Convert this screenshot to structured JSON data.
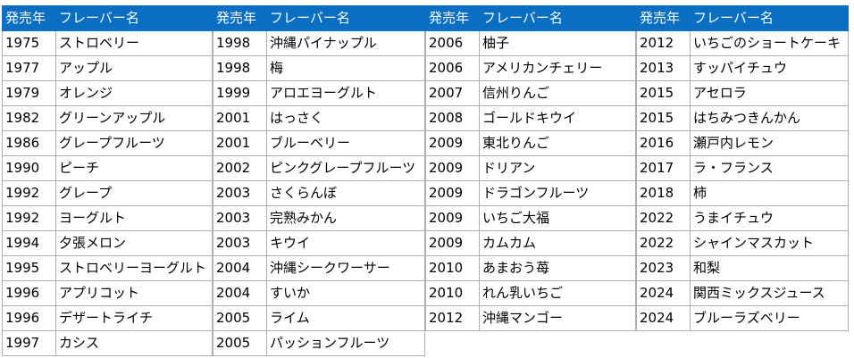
{
  "header": {
    "year": "発売年",
    "flavor": "フレーバー名"
  },
  "columns": [
    {
      "rows": [
        {
          "year": "1975",
          "flavor": "ストロベリー"
        },
        {
          "year": "1977",
          "flavor": "アップル"
        },
        {
          "year": "1979",
          "flavor": "オレンジ"
        },
        {
          "year": "1982",
          "flavor": "グリーンアップル"
        },
        {
          "year": "1986",
          "flavor": "グレープフルーツ"
        },
        {
          "year": "1990",
          "flavor": "ピーチ"
        },
        {
          "year": "1992",
          "flavor": "グレープ"
        },
        {
          "year": "1992",
          "flavor": "ヨーグルト"
        },
        {
          "year": "1994",
          "flavor": "夕張メロン"
        },
        {
          "year": "1995",
          "flavor": "ストロベリーヨーグルト"
        },
        {
          "year": "1996",
          "flavor": "アプリコット"
        },
        {
          "year": "1996",
          "flavor": "デザートライチ"
        },
        {
          "year": "1997",
          "flavor": "カシス"
        }
      ]
    },
    {
      "rows": [
        {
          "year": "1998",
          "flavor": "沖縄パイナップル"
        },
        {
          "year": "1998",
          "flavor": "梅"
        },
        {
          "year": "1999",
          "flavor": "アロエヨーグルト"
        },
        {
          "year": "2001",
          "flavor": "はっさく"
        },
        {
          "year": "2001",
          "flavor": "ブルーベリー"
        },
        {
          "year": "2002",
          "flavor": "ピンクグレープフルーツ"
        },
        {
          "year": "2003",
          "flavor": "さくらんぼ"
        },
        {
          "year": "2003",
          "flavor": "完熟みかん"
        },
        {
          "year": "2003",
          "flavor": "キウイ"
        },
        {
          "year": "2004",
          "flavor": "沖縄シークワーサー"
        },
        {
          "year": "2004",
          "flavor": "すいか"
        },
        {
          "year": "2005",
          "flavor": "ライム"
        },
        {
          "year": "2005",
          "flavor": "パッションフルーツ"
        }
      ]
    },
    {
      "rows": [
        {
          "year": "2006",
          "flavor": "柚子"
        },
        {
          "year": "2006",
          "flavor": "アメリカンチェリー"
        },
        {
          "year": "2007",
          "flavor": "信州りんご"
        },
        {
          "year": "2008",
          "flavor": "ゴールドキウイ"
        },
        {
          "year": "2009",
          "flavor": "東北りんご"
        },
        {
          "year": "2009",
          "flavor": "ドリアン"
        },
        {
          "year": "2009",
          "flavor": "ドラゴンフルーツ"
        },
        {
          "year": "2009",
          "flavor": "いちご大福"
        },
        {
          "year": "2009",
          "flavor": "カムカム"
        },
        {
          "year": "2010",
          "flavor": "あまおう苺"
        },
        {
          "year": "2010",
          "flavor": "れん乳いちご"
        },
        {
          "year": "2012",
          "flavor": "沖縄マンゴー"
        }
      ]
    },
    {
      "rows": [
        {
          "year": "2012",
          "flavor": "いちごのショートケーキ"
        },
        {
          "year": "2013",
          "flavor": "すッパイチュウ"
        },
        {
          "year": "2015",
          "flavor": "アセロラ"
        },
        {
          "year": "2015",
          "flavor": "はちみつきんかん"
        },
        {
          "year": "2016",
          "flavor": "瀬戸内レモン"
        },
        {
          "year": "2017",
          "flavor": "ラ・フランス"
        },
        {
          "year": "2018",
          "flavor": "柿"
        },
        {
          "year": "2022",
          "flavor": "うまイチュウ"
        },
        {
          "year": "2022",
          "flavor": "シャインマスカット"
        },
        {
          "year": "2023",
          "flavor": "和梨"
        },
        {
          "year": "2024",
          "flavor": "関西ミックスジュース"
        },
        {
          "year": "2024",
          "flavor": "ブルーラズベリー"
        }
      ]
    }
  ]
}
